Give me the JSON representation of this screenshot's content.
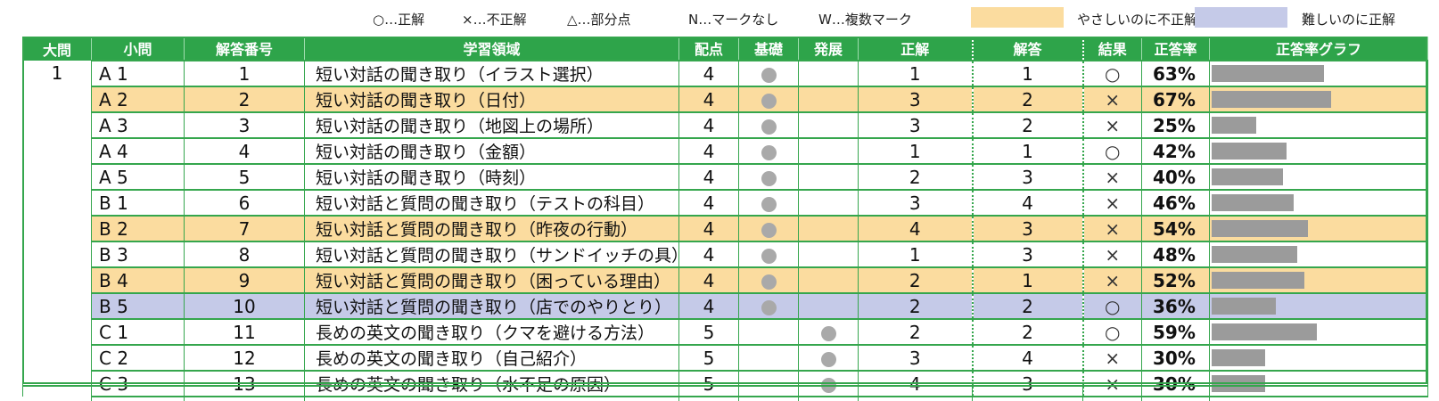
{
  "legend": {
    "correct": "○…正解",
    "incorrect": "×…不正解",
    "partial": "△…部分点",
    "no_mark": "N…マークなし",
    "multi_mark": "W…複数マーク",
    "easy_label": "やさしいのに不正解",
    "hard_label": "難しいのに正解",
    "easy_color": "#fbdc9f",
    "hard_color": "#c5cae8"
  },
  "headers": {
    "daimon": "大問",
    "shomon": "小問",
    "answer_no": "解答番号",
    "area": "学習領域",
    "points": "配点",
    "basic": "基礎",
    "advanced": "発展",
    "correct": "正解",
    "answer": "解答",
    "result": "結果",
    "rate": "正答率",
    "graph": "正答率グラフ"
  },
  "daimon_value": "1",
  "rows": [
    {
      "shomon": "A 1",
      "no": "1",
      "area": "短い対話の聞き取り（イラスト選択）",
      "points": "4",
      "level": "basic",
      "correct": "1",
      "answer": "1",
      "result": "○",
      "rate": "63%",
      "rate_value": 63,
      "highlight": ""
    },
    {
      "shomon": "A 2",
      "no": "2",
      "area": "短い対話の聞き取り（日付）",
      "points": "4",
      "level": "basic",
      "correct": "3",
      "answer": "2",
      "result": "×",
      "rate": "67%",
      "rate_value": 67,
      "highlight": "easy"
    },
    {
      "shomon": "A 3",
      "no": "3",
      "area": "短い対話の聞き取り（地図上の場所）",
      "points": "4",
      "level": "basic",
      "correct": "3",
      "answer": "2",
      "result": "×",
      "rate": "25%",
      "rate_value": 25,
      "highlight": ""
    },
    {
      "shomon": "A 4",
      "no": "4",
      "area": "短い対話の聞き取り（金額）",
      "points": "4",
      "level": "basic",
      "correct": "1",
      "answer": "1",
      "result": "○",
      "rate": "42%",
      "rate_value": 42,
      "highlight": ""
    },
    {
      "shomon": "A 5",
      "no": "5",
      "area": "短い対話の聞き取り（時刻）",
      "points": "4",
      "level": "basic",
      "correct": "2",
      "answer": "3",
      "result": "×",
      "rate": "40%",
      "rate_value": 40,
      "highlight": ""
    },
    {
      "shomon": "B 1",
      "no": "6",
      "area": "短い対話と質問の聞き取り（テストの科目）",
      "points": "4",
      "level": "basic",
      "correct": "3",
      "answer": "4",
      "result": "×",
      "rate": "46%",
      "rate_value": 46,
      "highlight": ""
    },
    {
      "shomon": "B 2",
      "no": "7",
      "area": "短い対話と質問の聞き取り（昨夜の行動）",
      "points": "4",
      "level": "basic",
      "correct": "4",
      "answer": "3",
      "result": "×",
      "rate": "54%",
      "rate_value": 54,
      "highlight": "easy"
    },
    {
      "shomon": "B 3",
      "no": "8",
      "area": "短い対話と質問の聞き取り（サンドイッチの具）",
      "points": "4",
      "level": "basic",
      "correct": "1",
      "answer": "3",
      "result": "×",
      "rate": "48%",
      "rate_value": 48,
      "highlight": ""
    },
    {
      "shomon": "B 4",
      "no": "9",
      "area": "短い対話と質問の聞き取り（困っている理由）",
      "points": "4",
      "level": "basic",
      "correct": "2",
      "answer": "1",
      "result": "×",
      "rate": "52%",
      "rate_value": 52,
      "highlight": "easy"
    },
    {
      "shomon": "B 5",
      "no": "10",
      "area": "短い対話と質問の聞き取り（店でのやりとり）",
      "points": "4",
      "level": "basic",
      "correct": "2",
      "answer": "2",
      "result": "○",
      "rate": "36%",
      "rate_value": 36,
      "highlight": "hard"
    },
    {
      "shomon": "C 1",
      "no": "11",
      "area": "長めの英文の聞き取り（クマを避ける方法）",
      "points": "5",
      "level": "advanced",
      "correct": "2",
      "answer": "2",
      "result": "○",
      "rate": "59%",
      "rate_value": 59,
      "highlight": ""
    },
    {
      "shomon": "C 2",
      "no": "12",
      "area": "長めの英文の聞き取り（自己紹介）",
      "points": "5",
      "level": "advanced",
      "correct": "3",
      "answer": "4",
      "result": "×",
      "rate": "30%",
      "rate_value": 30,
      "highlight": ""
    },
    {
      "shomon": "C 3",
      "no": "13",
      "area": "長めの英文の聞き取り（水不足の原因）",
      "points": "5",
      "level": "advanced",
      "correct": "4",
      "answer": "3",
      "result": "×",
      "rate": "30%",
      "rate_value": 30,
      "highlight": ""
    }
  ]
}
